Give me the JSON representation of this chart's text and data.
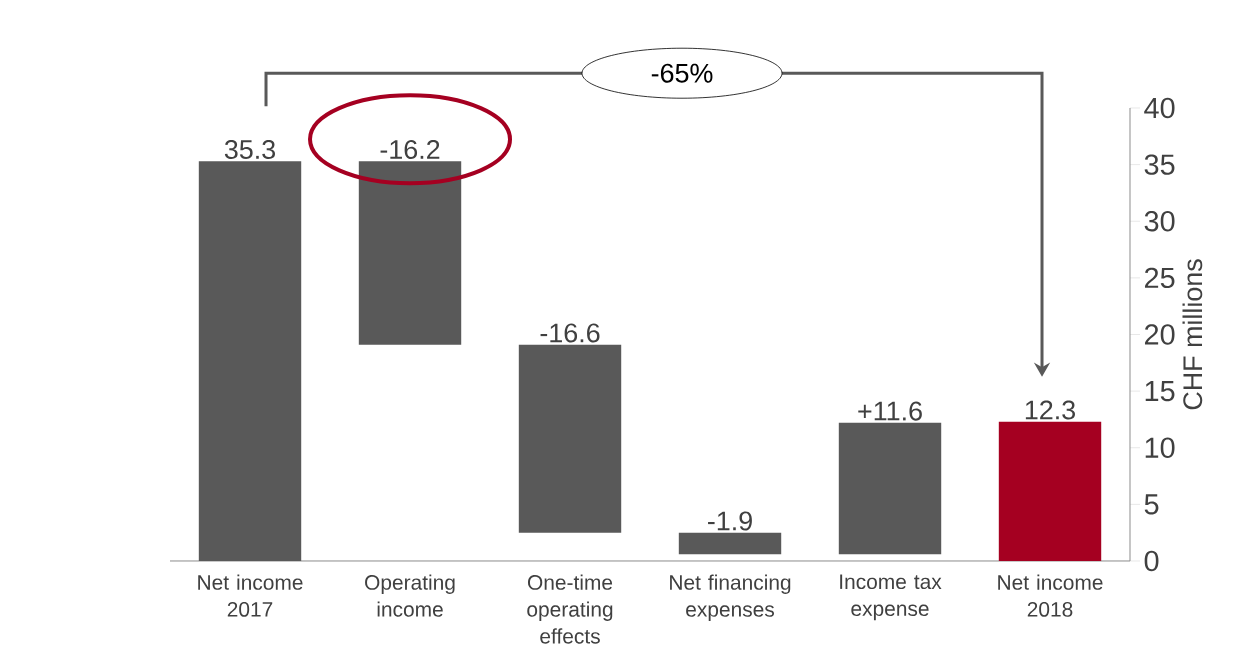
{
  "chart_data": {
    "type": "bar",
    "categories": [
      "Net income 2017",
      "Operating income",
      "One-time operating effects",
      "Net financing expenses",
      "Income tax expense",
      "Net income 2018"
    ],
    "base": [
      0,
      35.3,
      19.1,
      2.5,
      0.6,
      0
    ],
    "values": [
      35.3,
      -16.2,
      -16.6,
      -1.9,
      11.6,
      12.3
    ],
    "value_labels": [
      "35.3",
      "-16.2",
      "-16.6",
      "-1.9",
      "+11.6",
      "12.3"
    ],
    "colors": [
      "#595959",
      "#595959",
      "#595959",
      "#595959",
      "#595959",
      "#a50021"
    ],
    "ylabel": "CHF millions",
    "ylim": [
      0,
      40
    ],
    "yticks": [
      0,
      5,
      10,
      15,
      20,
      25,
      30,
      35,
      40
    ],
    "annotations": [
      "-65%"
    ],
    "grid": false
  }
}
